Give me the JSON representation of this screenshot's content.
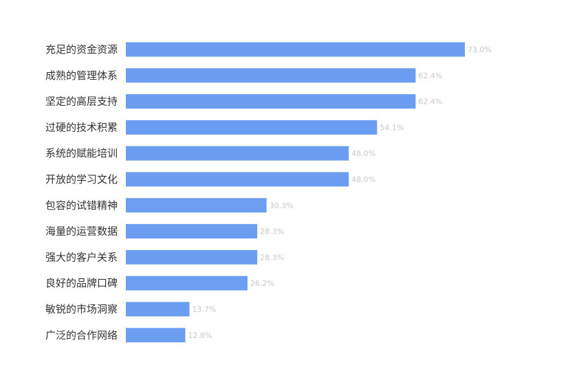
{
  "chart_data": {
    "type": "bar",
    "orientation": "horizontal",
    "categories": [
      "充足的资金资源",
      "成熟的管理体系",
      "坚定的高层支持",
      "过硬的技术积累",
      "系统的赋能培训",
      "开放的学习文化",
      "包容的试错精神",
      "海量的运营数据",
      "强大的客户关系",
      "良好的品牌口碑",
      "敏锐的市场洞察",
      "广泛的合作网络"
    ],
    "values": [
      73.0,
      62.4,
      62.4,
      54.1,
      48.0,
      48.0,
      30.3,
      28.3,
      28.3,
      26.2,
      13.7,
      12.8
    ],
    "value_labels": [
      "73.0%",
      "62.4%",
      "62.4%",
      "54.1%",
      "48.0%",
      "48.0%",
      "30.3%",
      "28.3%",
      "28.3%",
      "26.2%",
      "13.7%",
      "12.8%"
    ],
    "xlim": [
      0,
      100
    ],
    "grid": false,
    "legend": "none",
    "bar_color": "#6b9df1",
    "value_label_color": "#c8c8c8",
    "category_label_color": "#333333"
  }
}
